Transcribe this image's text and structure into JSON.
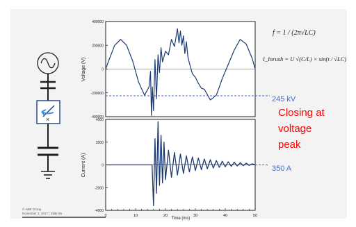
{
  "formulas": {
    "freq": "f = 1 / (2π√LC)",
    "inrush": "I_Inrush = U √(C/L) × sin(t / √LC)"
  },
  "annotations": {
    "voltage_peak": "245 kV",
    "current_peak": "350 A",
    "note_lines": [
      "Closing at",
      "voltage",
      "peak"
    ]
  },
  "footer": {
    "lines": [
      "© ABB Group",
      "November 2, 2017 | Slide 56"
    ]
  },
  "colors": {
    "trace": "#1b3a73",
    "annotation": "#3f6fd0",
    "note": "#ff0000",
    "symbol": "#1f3f7f"
  },
  "chart_data": [
    {
      "type": "line",
      "title": "",
      "xlabel": "",
      "ylabel": "Voltage (V)",
      "xlim": [
        0,
        50
      ],
      "ylim": [
        -400000,
        400000
      ],
      "yticks": [
        "400000",
        "200000",
        "0",
        "-200000",
        "-400000"
      ],
      "series": [
        {
          "x": [
            0,
            1,
            3,
            5,
            7,
            9,
            11,
            13,
            14.5,
            15,
            15.3,
            15.6,
            16,
            16.5,
            17,
            17.5,
            18,
            18.5,
            19,
            20,
            21,
            22,
            23,
            24,
            24.5,
            25,
            25.5,
            26,
            26.5,
            27,
            27.5,
            28,
            29,
            30,
            31,
            32,
            33,
            35,
            37,
            39,
            41,
            43,
            45,
            47,
            49,
            50
          ],
          "y": [
            0,
            70000,
            200000,
            250000,
            200000,
            70000,
            -110000,
            -220000,
            -150000,
            -20000,
            -390000,
            -150000,
            -350000,
            80000,
            -250000,
            120000,
            -30000,
            180000,
            60000,
            150000,
            120000,
            250000,
            190000,
            340000,
            220000,
            320000,
            200000,
            280000,
            130000,
            230000,
            100000,
            50000,
            -40000,
            -70000,
            -120000,
            -160000,
            -170000,
            -260000,
            -220000,
            -80000,
            40000,
            160000,
            250000,
            210000,
            90000,
            0
          ]
        }
      ]
    },
    {
      "type": "line",
      "title": "",
      "xlabel": "Time (ms)",
      "ylabel": "Current (A)",
      "xlim": [
        0,
        50
      ],
      "ylim": [
        -4000,
        4000
      ],
      "yticks": [
        "4000",
        "2000",
        "0",
        "-2000",
        "-4000"
      ],
      "xticks": [
        "0",
        "10",
        "20",
        "30",
        "40",
        "50"
      ],
      "series": [
        {
          "x": [
            0,
            15.5,
            16,
            16.5,
            17,
            17.5,
            18,
            18.5,
            19,
            19.5,
            20,
            21,
            22,
            23,
            24,
            25,
            26,
            27,
            28,
            29,
            30,
            31,
            32,
            33,
            34,
            35,
            36,
            37,
            38,
            39,
            40,
            41,
            42,
            43,
            44,
            45,
            46,
            47,
            48,
            49,
            50
          ],
          "y": [
            0,
            0,
            -3600,
            2300,
            -2500,
            3800,
            -1800,
            2600,
            -1600,
            2000,
            -1300,
            1300,
            -1100,
            1100,
            -900,
            950,
            -750,
            800,
            -620,
            700,
            -500,
            600,
            -420,
            520,
            -350,
            450,
            -280,
            380,
            -220,
            320,
            -170,
            270,
            -130,
            230,
            -100,
            190,
            -70,
            150,
            -50,
            100,
            0
          ]
        }
      ]
    }
  ]
}
